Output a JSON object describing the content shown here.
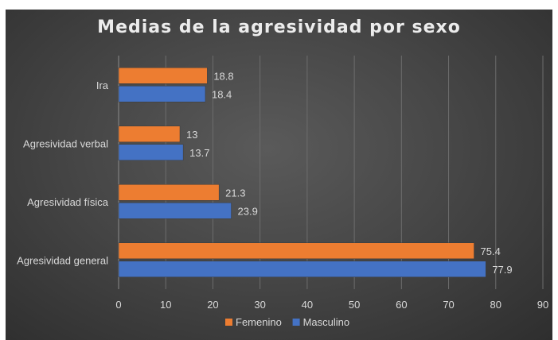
{
  "chart_data": {
    "type": "bar",
    "orientation": "horizontal",
    "title": "Medias de la agresividad por sexo",
    "categories": [
      "Ira",
      "Agresividad verbal",
      "Agresividad física",
      "Agresividad general"
    ],
    "series": [
      {
        "name": "Femenino",
        "color": "#ED7D31",
        "values": [
          18.8,
          13,
          21.3,
          75.4
        ],
        "labels": [
          "18.8",
          "13",
          "21.3",
          "75.4"
        ]
      },
      {
        "name": "Masculino",
        "color": "#4472C4",
        "values": [
          18.4,
          13.7,
          23.9,
          77.9
        ],
        "labels": [
          "18.4",
          "13.7",
          "23.9",
          "77.9"
        ]
      }
    ],
    "xlim": [
      0,
      90
    ],
    "xticks": [
      0,
      10,
      20,
      30,
      40,
      50,
      60,
      70,
      80,
      90
    ],
    "grid": true,
    "legend": "bottom"
  }
}
